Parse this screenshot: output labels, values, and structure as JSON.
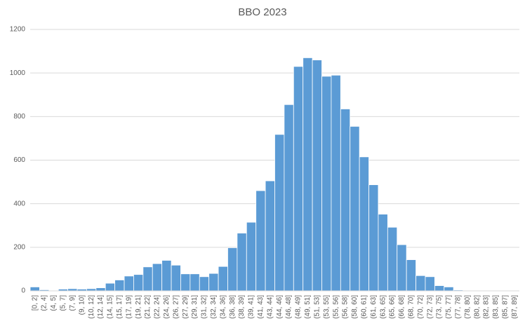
{
  "chart_data": {
    "type": "bar",
    "title": "BBO 2023",
    "categories": [
      "[0, 2]",
      "(2, 4]",
      "(4, 5]",
      "(5, 7]",
      "(7, 9]",
      "(9, 10]",
      "(10, 12]",
      "(12, 14]",
      "(14, 15]",
      "(15, 17]",
      "(17, 19]",
      "(19, 21]",
      "(21, 22]",
      "(22, 24]",
      "(24, 26]",
      "(26, 27]",
      "(27, 29]",
      "(29, 31]",
      "(31, 32]",
      "(32, 34]",
      "(34, 36]",
      "(36, 38]",
      "(38, 39]",
      "(39, 41]",
      "(41, 43]",
      "(43, 44]",
      "(44, 46]",
      "(46, 48]",
      "(48, 49]",
      "(49, 51]",
      "(51, 53]",
      "(53, 55]",
      "(55, 56]",
      "(56, 58]",
      "(58, 60]",
      "(60, 61]",
      "(61, 63]",
      "(63, 65]",
      "(65, 66]",
      "(66, 68]",
      "(68, 70]",
      "(70, 72]",
      "(72, 73]",
      "(73, 75]",
      "(75, 77]",
      "(77, 78]",
      "(78, 80]",
      "(80, 82]",
      "(82, 83]",
      "(83, 85]",
      "(85, 87]",
      "(87, 89]"
    ],
    "values": [
      18,
      5,
      0,
      8,
      10,
      8,
      10,
      14,
      35,
      50,
      68,
      75,
      110,
      125,
      140,
      118,
      78,
      78,
      65,
      80,
      112,
      198,
      265,
      315,
      460,
      505,
      718,
      855,
      1030,
      1070,
      1060,
      985,
      990,
      835,
      755,
      615,
      487,
      352,
      292,
      212,
      143,
      70,
      65,
      24,
      18,
      4,
      0,
      0,
      0,
      0,
      0,
      0
    ],
    "color": "#5b9bd5",
    "ylim": [
      0,
      1200
    ],
    "yticks": [
      0,
      200,
      400,
      600,
      800,
      1000,
      1200
    ],
    "grid": true
  }
}
